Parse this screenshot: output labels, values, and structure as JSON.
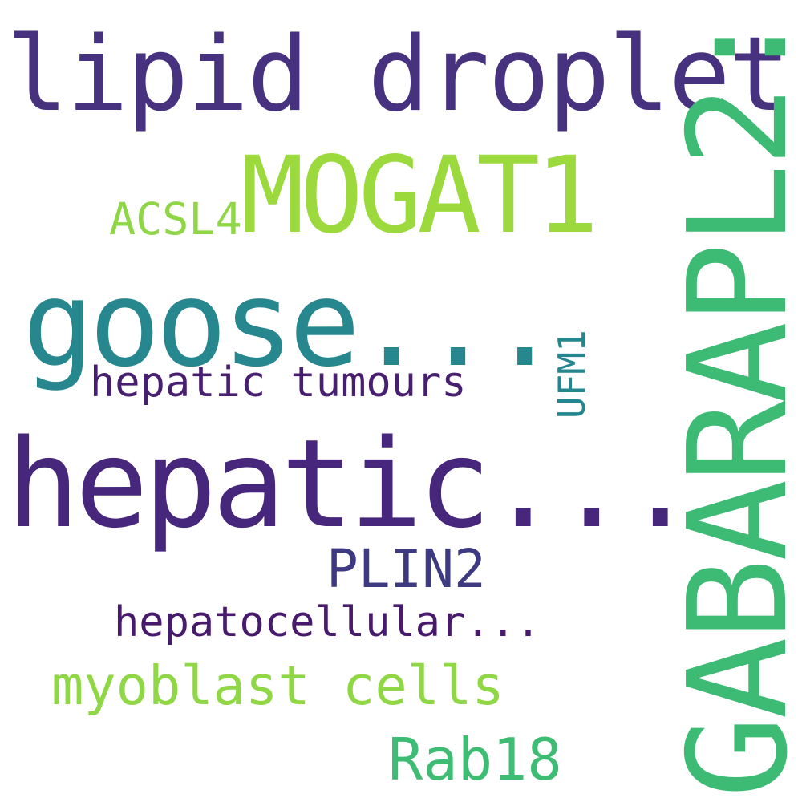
{
  "word_cloud": {
    "words": [
      {
        "text": "lipid droplet:",
        "color": "#46327e"
      },
      {
        "text": "MOGAT1",
        "color": "#9bd93c"
      },
      {
        "text": "ACSL4",
        "color": "#8ed645"
      },
      {
        "text": "goose...",
        "color": "#26878e"
      },
      {
        "text": "hepatic tumours",
        "color": "#481f70"
      },
      {
        "text": "hepatic...",
        "color": "#46277b"
      },
      {
        "text": "PLIN2",
        "color": "#3e3a81"
      },
      {
        "text": "hepatocellular...",
        "color": "#481a6c"
      },
      {
        "text": "myoblast cells",
        "color": "#8fd744"
      },
      {
        "text": "Rab18",
        "color": "#3fbc73"
      },
      {
        "text": "UFM1",
        "color": "#24868e"
      },
      {
        "text": "GABARAPL2:",
        "color": "#3dba74"
      }
    ]
  }
}
